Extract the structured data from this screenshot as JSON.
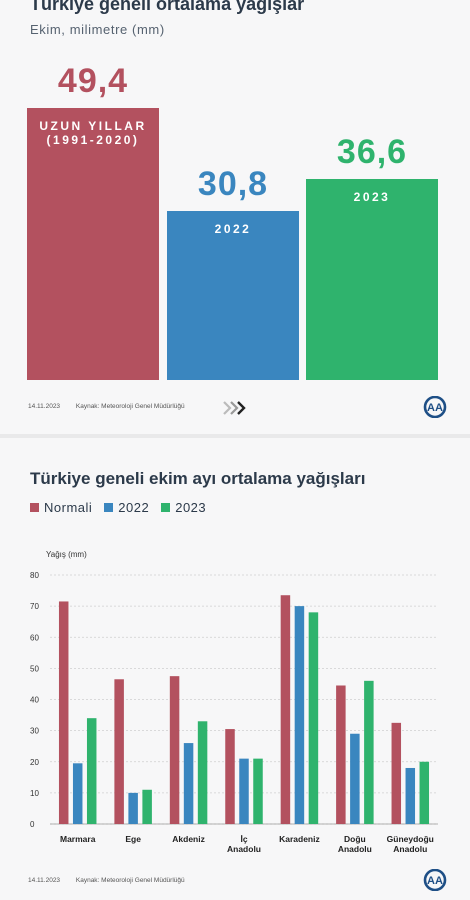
{
  "panel1": {
    "title": "Türkiye geneli ortalama yağışlar",
    "subtitle": "Ekim, milimetre (mm)",
    "bars": [
      {
        "label": "UZUN YILLAR\n(1991-2020)",
        "value_text": "49,4",
        "value": 49.4,
        "color": "#b3515f"
      },
      {
        "label": "2022",
        "value_text": "30,8",
        "value": 30.8,
        "color": "#3a86bf"
      },
      {
        "label": "2023",
        "value_text": "36,6",
        "value": 36.6,
        "color": "#2fb36d"
      }
    ],
    "footer": {
      "date": "14.11.2023",
      "source": "Kaynak: Meteoroloji Genel Müdürlüğü"
    }
  },
  "panel2": {
    "title": "Türkiye geneli ekim ayı ortalama yağışları",
    "footer": {
      "date": "14.11.2023",
      "source": "Kaynak: Meteoroloji Genel Müdürlüğü"
    }
  },
  "logo_text": "AA",
  "chart_data": [
    {
      "type": "bar",
      "title": "Türkiye geneli ortalama yağışlar",
      "subtitle": "Ekim, milimetre (mm)",
      "categories": [
        "UZUN YILLAR (1991-2020)",
        "2022",
        "2023"
      ],
      "values": [
        49.4,
        30.8,
        36.6
      ],
      "colors": [
        "#b3515f",
        "#3a86bf",
        "#2fb36d"
      ]
    },
    {
      "type": "bar",
      "title": "Türkiye geneli ekim ayı ortalama yağışları",
      "ylabel": "Yağış (mm)",
      "ylim": [
        0,
        80
      ],
      "yticks": [
        0,
        10,
        20,
        30,
        40,
        50,
        60,
        70,
        80
      ],
      "grid": true,
      "legend": "top-left",
      "categories": [
        "Marmara",
        "Ege",
        "Akdeniz",
        "İç\nAnadolu",
        "Karadeniz",
        "Doğu\nAnadolu",
        "Güneydoğu\nAnadolu"
      ],
      "series": [
        {
          "name": "Normali",
          "color": "#b3515f",
          "values": [
            71.5,
            46.5,
            47.5,
            30.5,
            73.5,
            44.5,
            32.5
          ]
        },
        {
          "name": "2022",
          "color": "#3a86bf",
          "values": [
            19.5,
            10,
            26,
            21,
            70,
            29,
            18
          ]
        },
        {
          "name": "2023",
          "color": "#2fb36d",
          "values": [
            34,
            11,
            33,
            21,
            68,
            46,
            20
          ]
        }
      ]
    }
  ]
}
